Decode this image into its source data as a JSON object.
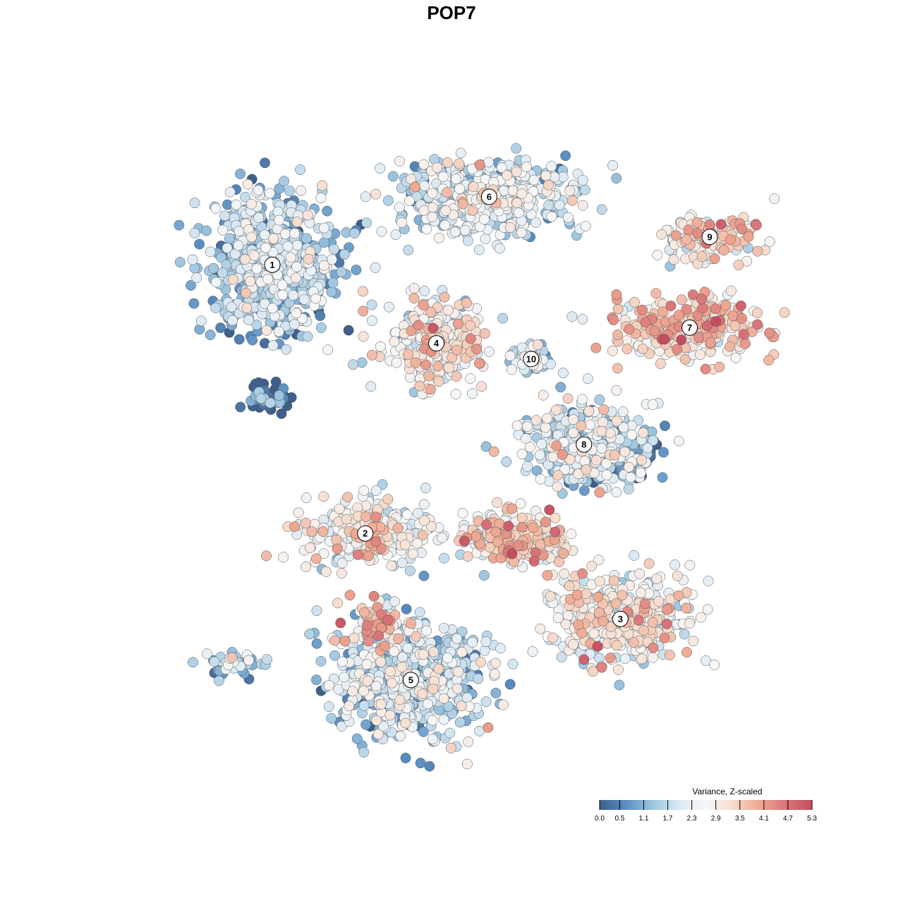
{
  "chart_data": {
    "type": "scatter",
    "title": "POP7",
    "xlabel": "",
    "ylabel": "",
    "grid": false,
    "legend_placement": "bottom-right",
    "color_scale": {
      "title": "Variance, Z-scaled",
      "min": 0.0,
      "max": 5.3,
      "ticks": [
        0.0,
        0.5,
        1.1,
        1.7,
        2.3,
        2.9,
        3.5,
        4.1,
        4.7,
        5.3
      ],
      "tick_labels": [
        "0.0",
        "0.5",
        "1.1",
        "1.7",
        "2.3",
        "2.9",
        "3.5",
        "4.1",
        "4.7",
        "5.3"
      ],
      "colors": [
        "#3e5f8a",
        "#5b8fc4",
        "#9cc5e0",
        "#dbe9f3",
        "#f7f7f7",
        "#f6dccd",
        "#eea891",
        "#d9757a",
        "#c44e5f"
      ]
    },
    "clusters": [
      {
        "label": "1",
        "x": -9.8,
        "y": 9.1,
        "spread_x": 3.2,
        "spread_y": 3.4,
        "mean_value": 1.4,
        "n": 700
      },
      {
        "label": "2",
        "x": -4.7,
        "y": -6.3,
        "spread_x": 3.6,
        "spread_y": 1.8,
        "mean_value": 2.7,
        "n": 230
      },
      {
        "label": "3",
        "x": 9.3,
        "y": -11.2,
        "spread_x": 3.6,
        "spread_y": 2.4,
        "mean_value": 2.6,
        "n": 420
      },
      {
        "label": "4",
        "x": -0.8,
        "y": 4.6,
        "spread_x": 2.4,
        "spread_y": 2.3,
        "mean_value": 2.6,
        "n": 280
      },
      {
        "label": "5",
        "x": -2.2,
        "y": -14.7,
        "spread_x": 3.6,
        "spread_y": 3.2,
        "mean_value": 1.7,
        "n": 620
      },
      {
        "label": "6",
        "x": 2.1,
        "y": 13.0,
        "spread_x": 4.2,
        "spread_y": 2.0,
        "mean_value": 1.9,
        "n": 520
      },
      {
        "label": "7",
        "x": 13.1,
        "y": 5.5,
        "spread_x": 4.0,
        "spread_y": 1.6,
        "mean_value": 3.3,
        "n": 260
      },
      {
        "label": "8",
        "x": 7.3,
        "y": -1.2,
        "spread_x": 3.2,
        "spread_y": 2.2,
        "mean_value": 2.0,
        "n": 330
      },
      {
        "label": "9",
        "x": 14.2,
        "y": 10.7,
        "spread_x": 2.5,
        "spread_y": 1.2,
        "mean_value": 3.0,
        "n": 130
      },
      {
        "label": "10",
        "x": 4.4,
        "y": 3.7,
        "spread_x": 1.0,
        "spread_y": 0.8,
        "mean_value": 1.6,
        "n": 60
      }
    ],
    "extra_groups": [
      {
        "x": 3.6,
        "y": -6.6,
        "spread_x": 2.6,
        "spread_y": 1.3,
        "mean_value": 3.1,
        "n": 240
      },
      {
        "x": 9.6,
        "y": -1.8,
        "spread_x": 1.4,
        "spread_y": 1.1,
        "mean_value": 0.2,
        "n": 180
      },
      {
        "x": -4.0,
        "y": -11.6,
        "spread_x": 1.3,
        "spread_y": 1.3,
        "mean_value": 3.5,
        "n": 70
      },
      {
        "x": -12.0,
        "y": -13.8,
        "spread_x": 1.6,
        "spread_y": 0.6,
        "mean_value": 1.6,
        "n": 40
      },
      {
        "x": -10.0,
        "y": 1.4,
        "spread_x": 1.2,
        "spread_y": 0.7,
        "mean_value": 0.3,
        "n": 50
      }
    ],
    "xlim": [
      -17.0,
      19.0
    ],
    "ylim": [
      -20.0,
      17.0
    ]
  }
}
